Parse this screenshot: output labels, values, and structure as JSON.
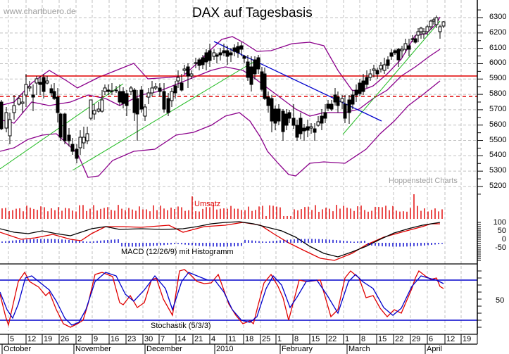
{
  "header": {
    "watermark": "www.chartbuero.de",
    "title": "DAX auf Tagesbasis",
    "source": "Hoppenstedt Charts"
  },
  "colors": {
    "grid": "#c0c0c0",
    "candle_up": "#ffffff",
    "candle_down": "#000000",
    "bollinger": "#8b008b",
    "resistance": "#e00000",
    "trend_up": "#22bb22",
    "trend_down": "#0000cc",
    "volume": "#e00000",
    "macd": "#000000",
    "signal": "#e00000",
    "histogram": "#0000cc",
    "stoch_k": "#e00000",
    "stoch_d": "#0000cc",
    "stoch_bands": "#0000cc"
  },
  "panels": {
    "volume_label": "Umsatz",
    "macd_label": "MACD (12/26/9) mit Histogramm",
    "stoch_label": "Stochastik (5/3/3)"
  },
  "chart_data": [
    {
      "type": "candlestick",
      "title": "DAX auf Tagesbasis",
      "ylabel": "",
      "ylim": [
        5100,
        6350
      ],
      "yticks": [
        5200,
        5300,
        5400,
        5500,
        5600,
        5700,
        5800,
        5900,
        6000,
        6100,
        6200,
        6300
      ],
      "grid": true,
      "overlays": [
        "Bollinger Bands (upper, middle, lower)",
        "Resistance line 5890 (solid red)",
        "Support/resistance line 5760 (dashed red)",
        "Green uptrend lines",
        "Blue downtrend line"
      ],
      "levels": {
        "solid_red": 5890,
        "dashed_red": 5760
      },
      "x_period": "2009-10 to 2010-04",
      "approx_closes": {
        "Oct 5": 5500,
        "Oct 12": 5750,
        "Oct 19": 5820,
        "Oct 26": 5600,
        "Nov 2": 5360,
        "Nov 9": 5550,
        "Nov 16": 5800,
        "Nov 23": 5700,
        "Nov 30": 5720,
        "Dec 7": 5750,
        "Dec 14": 5870,
        "Dec 21": 5980,
        "Jan 4": 6050,
        "Jan 11": 5990,
        "Jan 18": 5900,
        "Jan 25": 5640,
        "Feb 1": 5600,
        "Feb 8": 5470,
        "Feb 15": 5590,
        "Feb 22": 5620,
        "Mar 1": 5720,
        "Mar 8": 5880,
        "Mar 15": 6000,
        "Mar 22": 6100,
        "Mar 29": 6160,
        "Apr 6": 6240
      }
    },
    {
      "type": "bar",
      "title": "Umsatz",
      "note": "daily volume bars, red; spikes around Dec 31/Jan and late March"
    },
    {
      "type": "line",
      "title": "MACD (12/26/9) mit Histogramm",
      "yticks": [
        100,
        50,
        0,
        -50
      ],
      "series": [
        {
          "name": "MACD",
          "color": "black"
        },
        {
          "name": "Signal",
          "color": "red"
        },
        {
          "name": "Histogram",
          "color": "blue"
        }
      ]
    },
    {
      "type": "line",
      "title": "Stochastik (5/3/3)",
      "yticks": [
        50
      ],
      "bands": [
        20,
        80
      ],
      "series": [
        {
          "name": "%K",
          "color": "red"
        },
        {
          "name": "%D",
          "color": "blue"
        }
      ]
    }
  ],
  "xaxis": {
    "days": [
      "5",
      "12",
      "19",
      "26",
      "2",
      "9",
      "16",
      "23",
      "30",
      "7",
      "14",
      "21",
      "4",
      "11",
      "18",
      "25",
      "1",
      "8",
      "15",
      "22",
      "1",
      "8",
      "15",
      "22",
      "29",
      "6",
      "12",
      "19"
    ],
    "months": [
      "October",
      "November",
      "December",
      "2010",
      "February",
      "March",
      "April"
    ]
  },
  "yaxis": {
    "price_labels": [
      "6300",
      "6200",
      "6100",
      "6000",
      "5900",
      "5800",
      "5700",
      "5600",
      "5500",
      "5400",
      "5300",
      "5200"
    ],
    "macd_labels": [
      "100",
      "50",
      "0",
      "-50"
    ],
    "stoch_labels": [
      "50"
    ]
  }
}
